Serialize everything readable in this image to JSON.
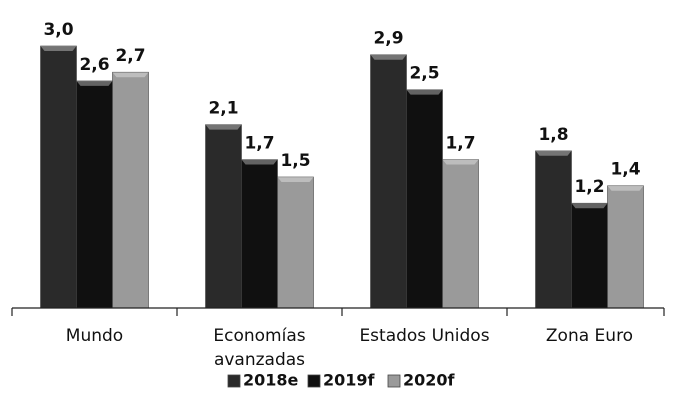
{
  "chart_data": {
    "type": "bar",
    "categories": [
      "Mundo",
      "Economías avanzadas",
      "Estados Unidos",
      "Zona Euro"
    ],
    "series": [
      {
        "name": "2018e",
        "color": "#2a2a2a",
        "values": [
          3.0,
          2.1,
          2.9,
          1.8
        ],
        "value_labels": [
          "3,0",
          "2,1",
          "2,9",
          "1,8"
        ]
      },
      {
        "name": "2019f",
        "color": "#101010",
        "values": [
          2.6,
          1.7,
          2.5,
          1.2
        ],
        "value_labels": [
          "2,6",
          "1,7",
          "2,5",
          "1,2"
        ]
      },
      {
        "name": "2020f",
        "color": "#9a9a9a",
        "values": [
          2.7,
          1.5,
          1.7,
          1.4
        ],
        "value_labels": [
          "2,7",
          "1,5",
          "1,7",
          "1,4"
        ]
      }
    ],
    "legend": "bottom"
  }
}
